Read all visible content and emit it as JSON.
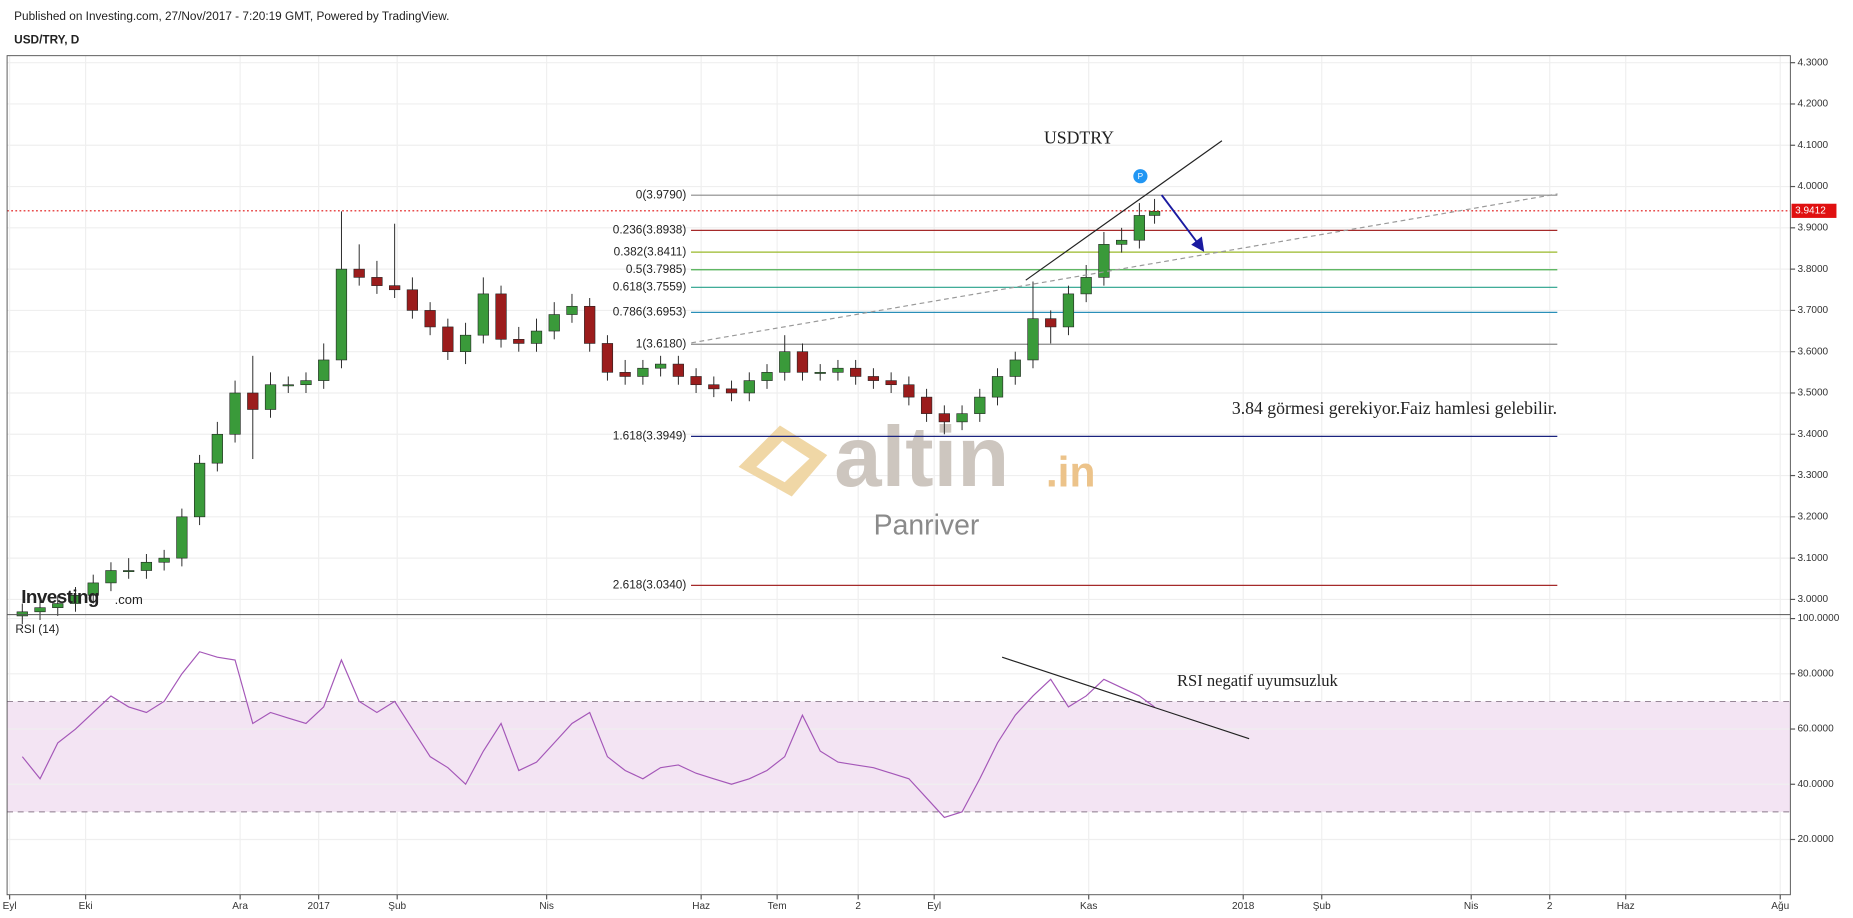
{
  "chart_data": [
    {
      "type": "candlestick",
      "subtitle": "Published on Investing.com, 27/Nov/2017 - 7:20:19 GMT, Powered by TradingView.",
      "title": "USD/TRY, D",
      "up_color": "#3a9a3a",
      "down_color": "#9b1c1c",
      "xlim": [
        -1,
        703
      ],
      "xticks": [
        {
          "value": 0,
          "label": "Eyl"
        },
        {
          "value": 30,
          "label": "Eki"
        },
        {
          "value": 91,
          "label": "Ara"
        },
        {
          "value": 122,
          "label": "2017"
        },
        {
          "value": 153,
          "label": "Şub"
        },
        {
          "value": 212,
          "label": "Nis"
        },
        {
          "value": 273,
          "label": "Haz"
        },
        {
          "value": 303,
          "label": "Tem"
        },
        {
          "value": 335,
          "label": "2"
        },
        {
          "value": 365,
          "label": "Eyl"
        },
        {
          "value": 426,
          "label": "Kas"
        },
        {
          "value": 487,
          "label": "2018"
        },
        {
          "value": 518,
          "label": "Şub"
        },
        {
          "value": 577,
          "label": "Nis"
        },
        {
          "value": 608,
          "label": "2"
        },
        {
          "value": 638,
          "label": "Haz"
        },
        {
          "value": 699,
          "label": "Ağu"
        }
      ],
      "ylim": [
        2.966,
        4.317
      ],
      "yticks": [
        {
          "value": 3.0,
          "label": "3.0000"
        },
        {
          "value": 3.1,
          "label": "3.1000"
        },
        {
          "value": 3.2,
          "label": "3.2000"
        },
        {
          "value": 3.3,
          "label": "3.3000"
        },
        {
          "value": 3.4,
          "label": "3.4000"
        },
        {
          "value": 3.5,
          "label": "3.5000"
        },
        {
          "value": 3.6,
          "label": "3.6000"
        },
        {
          "value": 3.7,
          "label": "3.7000"
        },
        {
          "value": 3.8,
          "label": "3.8000"
        },
        {
          "value": 3.9,
          "label": "3.9000"
        },
        {
          "value": 4.0,
          "label": "4.0000"
        },
        {
          "value": 4.1,
          "label": "4.1000"
        },
        {
          "value": 4.2,
          "label": "4.2000"
        },
        {
          "value": 4.3,
          "label": "4.3000"
        }
      ],
      "grid": true,
      "last_price": 3.9412,
      "last_price_color": "#e01010",
      "x": [
        5,
        12,
        19,
        26,
        33,
        40,
        47,
        54,
        61,
        68,
        75,
        82,
        89,
        96,
        103,
        110,
        117,
        124,
        131,
        138,
        145,
        152,
        159,
        166,
        173,
        180,
        187,
        194,
        201,
        208,
        215,
        222,
        229,
        236,
        243,
        250,
        257,
        264,
        271,
        278,
        285,
        292,
        299,
        306,
        313,
        320,
        327,
        334,
        341,
        348,
        355,
        362,
        369,
        376,
        383,
        390,
        397,
        404,
        411,
        418,
        425,
        432,
        439,
        446,
        452
      ],
      "open": [
        2.96,
        2.97,
        2.98,
        2.99,
        3.01,
        3.04,
        3.07,
        3.07,
        3.09,
        3.1,
        3.2,
        3.33,
        3.4,
        3.5,
        3.46,
        3.52,
        3.52,
        3.53,
        3.58,
        3.8,
        3.78,
        3.76,
        3.75,
        3.7,
        3.66,
        3.6,
        3.64,
        3.74,
        3.63,
        3.62,
        3.65,
        3.69,
        3.71,
        3.62,
        3.55,
        3.54,
        3.56,
        3.57,
        3.54,
        3.52,
        3.51,
        3.5,
        3.53,
        3.55,
        3.6,
        3.55,
        3.55,
        3.56,
        3.54,
        3.53,
        3.52,
        3.49,
        3.45,
        3.43,
        3.45,
        3.49,
        3.54,
        3.58,
        3.68,
        3.66,
        3.74,
        3.78,
        3.86,
        3.87,
        3.93
      ],
      "high": [
        2.99,
        3.0,
        3.01,
        3.03,
        3.06,
        3.09,
        3.1,
        3.11,
        3.12,
        3.22,
        3.35,
        3.43,
        3.53,
        3.59,
        3.55,
        3.54,
        3.55,
        3.62,
        3.94,
        3.86,
        3.82,
        3.91,
        3.78,
        3.72,
        3.68,
        3.67,
        3.78,
        3.76,
        3.66,
        3.68,
        3.72,
        3.74,
        3.73,
        3.64,
        3.58,
        3.58,
        3.59,
        3.59,
        3.56,
        3.54,
        3.53,
        3.55,
        3.57,
        3.64,
        3.62,
        3.57,
        3.58,
        3.58,
        3.56,
        3.55,
        3.54,
        3.51,
        3.47,
        3.47,
        3.51,
        3.56,
        3.6,
        3.77,
        3.7,
        3.76,
        3.81,
        3.89,
        3.9,
        3.96,
        3.97
      ],
      "low": [
        2.94,
        2.95,
        2.96,
        2.97,
        2.99,
        3.02,
        3.05,
        3.05,
        3.07,
        3.08,
        3.18,
        3.31,
        3.38,
        3.34,
        3.44,
        3.5,
        3.5,
        3.51,
        3.56,
        3.76,
        3.74,
        3.73,
        3.68,
        3.64,
        3.58,
        3.57,
        3.62,
        3.61,
        3.6,
        3.6,
        3.63,
        3.67,
        3.6,
        3.53,
        3.52,
        3.52,
        3.54,
        3.52,
        3.5,
        3.49,
        3.48,
        3.48,
        3.51,
        3.53,
        3.53,
        3.53,
        3.53,
        3.52,
        3.51,
        3.5,
        3.47,
        3.43,
        3.4,
        3.41,
        3.43,
        3.47,
        3.52,
        3.56,
        3.62,
        3.64,
        3.72,
        3.76,
        3.84,
        3.85,
        3.91
      ],
      "close": [
        2.97,
        2.98,
        2.99,
        3.01,
        3.04,
        3.07,
        3.07,
        3.09,
        3.1,
        3.2,
        3.33,
        3.4,
        3.5,
        3.46,
        3.52,
        3.52,
        3.53,
        3.58,
        3.8,
        3.78,
        3.76,
        3.75,
        3.7,
        3.66,
        3.6,
        3.64,
        3.74,
        3.63,
        3.62,
        3.65,
        3.69,
        3.71,
        3.62,
        3.55,
        3.54,
        3.56,
        3.57,
        3.54,
        3.52,
        3.51,
        3.5,
        3.53,
        3.55,
        3.6,
        3.55,
        3.55,
        3.56,
        3.54,
        3.53,
        3.52,
        3.49,
        3.45,
        3.43,
        3.45,
        3.49,
        3.54,
        3.58,
        3.68,
        3.66,
        3.74,
        3.78,
        3.86,
        3.87,
        3.93,
        3.94
      ],
      "fib_range": [
        269,
        611
      ],
      "fib_levels": [
        {
          "value": 3.979,
          "label": "0(3.9790)",
          "color": "#8a8a8a"
        },
        {
          "value": 3.8938,
          "label": "0.236(3.8938)",
          "color": "#a52a2a"
        },
        {
          "value": 3.8411,
          "label": "0.382(3.8411)",
          "color": "#9ab92a"
        },
        {
          "value": 3.7985,
          "label": "0.5(3.7985)",
          "color": "#4caf50"
        },
        {
          "value": 3.7559,
          "label": "0.618(3.7559)",
          "color": "#26a08a"
        },
        {
          "value": 3.6953,
          "label": "0.786(3.6953)",
          "color": "#2a8fb8"
        },
        {
          "value": 3.618,
          "label": "1(3.6180)",
          "color": "#8a8a8a"
        },
        {
          "value": 3.3949,
          "label": "1.618(3.3949)",
          "color": "#1a237e"
        },
        {
          "value": 3.034,
          "label": "2.618(3.0340)",
          "color": "#a52a2a"
        }
      ],
      "annotations": [
        "USDTRY",
        "3.84 görmesi gerekiyor.Faiz hamlesi gelebilir."
      ],
      "marker": "P",
      "watermark": {
        "brand": "altin",
        "suffix": ".in",
        "user": "Panriver"
      },
      "source_logo": {
        "name": "Investing",
        "suffix": ".com"
      }
    },
    {
      "type": "line",
      "title": "RSI (14)",
      "color": "#a457b8",
      "xlim": [
        -1,
        703
      ],
      "ylim": [
        0,
        101
      ],
      "yticks": [
        {
          "value": 20,
          "label": "20.0000"
        },
        {
          "value": 40,
          "label": "40.0000"
        },
        {
          "value": 60,
          "label": "60.0000"
        },
        {
          "value": 80,
          "label": "80.0000"
        },
        {
          "value": 100,
          "label": "100.0000"
        }
      ],
      "bands": [
        30,
        70
      ],
      "band_color": "#f3e4f3",
      "x": [
        5,
        12,
        19,
        26,
        33,
        40,
        47,
        54,
        61,
        68,
        75,
        82,
        89,
        96,
        103,
        110,
        117,
        124,
        131,
        138,
        145,
        152,
        159,
        166,
        173,
        180,
        187,
        194,
        201,
        208,
        215,
        222,
        229,
        236,
        243,
        250,
        257,
        264,
        271,
        278,
        285,
        292,
        299,
        306,
        313,
        320,
        327,
        334,
        341,
        348,
        355,
        362,
        369,
        376,
        383,
        390,
        397,
        404,
        411,
        418,
        425,
        432,
        439,
        446,
        452
      ],
      "values": [
        50,
        42,
        55,
        60,
        66,
        72,
        68,
        66,
        70,
        80,
        88,
        86,
        85,
        62,
        66,
        64,
        62,
        68,
        85,
        70,
        66,
        70,
        60,
        50,
        46,
        40,
        52,
        62,
        45,
        48,
        55,
        62,
        66,
        50,
        45,
        42,
        46,
        47,
        44,
        42,
        40,
        42,
        45,
        50,
        65,
        52,
        48,
        47,
        46,
        44,
        42,
        35,
        28,
        30,
        42,
        55,
        65,
        72,
        78,
        68,
        72,
        78,
        75,
        72,
        68
      ],
      "annotations": [
        "RSI negatif uyumsuzluk"
      ]
    }
  ]
}
